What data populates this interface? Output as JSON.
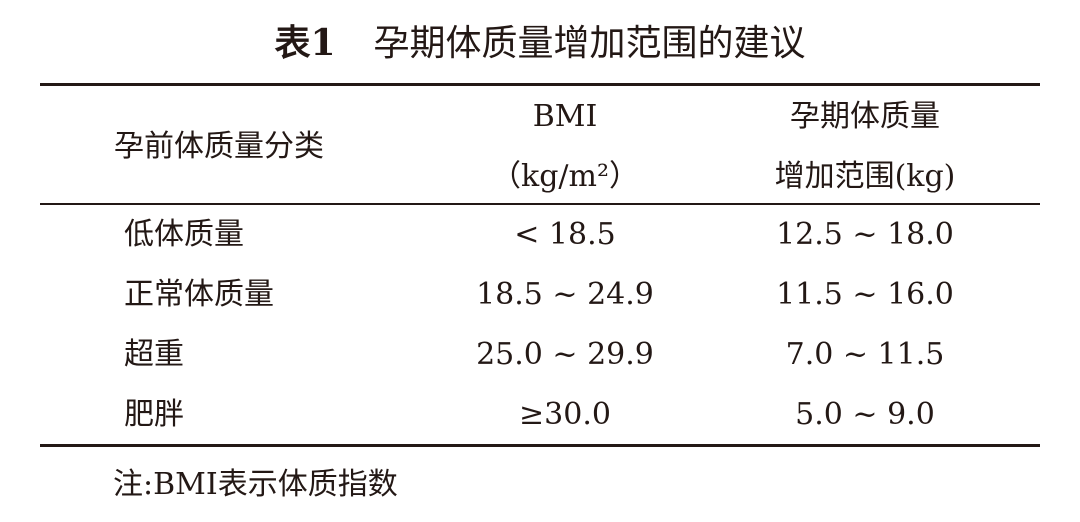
{
  "title": {
    "label": "表1",
    "text": "孕期体质量增加范围的建议"
  },
  "table": {
    "headers": {
      "category": "孕前体质量分类",
      "bmi_line1": "BMI",
      "bmi_line2": "（kg/m²）",
      "gain_line1": "孕期体质量",
      "gain_line2": "增加范围(kg)"
    },
    "rows": [
      {
        "category": "低体质量",
        "bmi": "< 18.5",
        "gain": "12.5 ~ 18.0"
      },
      {
        "category": "正常体质量",
        "bmi": "18.5 ~ 24.9",
        "gain": "11.5 ~ 16.0"
      },
      {
        "category": "超重",
        "bmi": "25.0 ~ 29.9",
        "gain": "7.0 ~ 11.5"
      },
      {
        "category": "肥胖",
        "bmi": "≥30.0",
        "gain": "5.0 ~ 9.0"
      }
    ]
  },
  "note": "注:BMI表示体质指数"
}
